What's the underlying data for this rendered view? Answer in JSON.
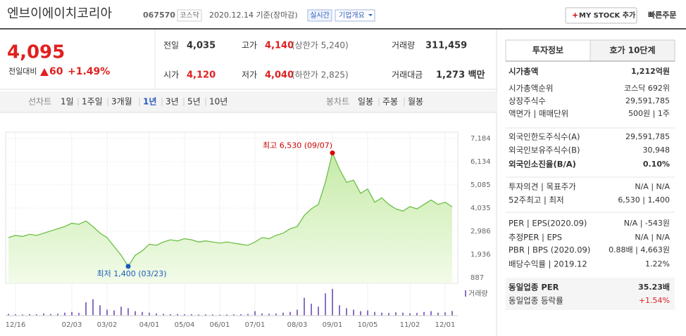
{
  "header": {
    "name": "엔브이에이치코리아",
    "code": "067570",
    "market": "코스닥",
    "date": "2020.12.14 기준(장마감)",
    "realtime": "실시간",
    "company": "기업개요",
    "mystock": "MY STOCK 추가",
    "order": "빠른주문"
  },
  "price": {
    "current": "4,095",
    "change_label": "전일대비",
    "change": "60",
    "rate": "+1.49%"
  },
  "summary": [
    [
      {
        "label": "전일",
        "value": "4,035"
      },
      {
        "label": "고가",
        "value": "4,140",
        "note": "(상한가 5,240)"
      },
      {
        "label": "거래량",
        "value": "311,459"
      }
    ],
    [
      {
        "label": "시가",
        "value": "4,120"
      },
      {
        "label": "저가",
        "value": "4,040",
        "note": "(하한가 2,825)"
      },
      {
        "label": "거래대금",
        "value": "1,273 백만"
      }
    ]
  ],
  "tabs": {
    "line": "선차트",
    "line_periods": [
      "1일",
      "1주일",
      "3개월",
      "1년",
      "3년",
      "5년",
      "10년"
    ],
    "candle": "봉차트",
    "candle_periods": [
      "일봉",
      "주봉",
      "월봉"
    ]
  },
  "chart_data": {
    "type": "line",
    "color": "#6cbf46",
    "categories": [
      null,
      "12/16",
      null,
      null,
      null,
      null,
      null,
      null,
      null,
      "02/03",
      null,
      null,
      null,
      null,
      "03/02",
      null,
      null,
      null,
      null,
      null,
      "04/01",
      null,
      null,
      null,
      null,
      "05/04",
      null,
      null,
      null,
      null,
      "06/01",
      null,
      null,
      null,
      null,
      "07/01",
      null,
      null,
      null,
      null,
      null,
      "08/03",
      null,
      null,
      null,
      null,
      "09/01",
      null,
      null,
      null,
      null,
      "10/05",
      null,
      null,
      null,
      null,
      null,
      "11/02",
      null,
      null,
      null,
      null,
      "12/01",
      null
    ],
    "values": [
      2700,
      2800,
      2750,
      2850,
      2800,
      2900,
      3000,
      3100,
      3200,
      3350,
      3300,
      3450,
      3200,
      2900,
      2700,
      2300,
      1900,
      1400,
      1900,
      2100,
      2400,
      2350,
      2500,
      2600,
      2550,
      2650,
      2600,
      2500,
      2550,
      2500,
      2450,
      2500,
      2450,
      2400,
      2350,
      2500,
      2700,
      2650,
      2800,
      2900,
      3100,
      3200,
      3700,
      4000,
      4200,
      5200,
      6530,
      5800,
      5200,
      5300,
      4700,
      4900,
      4300,
      4500,
      4200,
      4000,
      3900,
      4100,
      4000,
      4200,
      4400,
      4200,
      4300,
      4095
    ],
    "ylim": [
      887,
      7184
    ],
    "yticks": [
      {
        "value": 887,
        "label": "887"
      },
      {
        "value": 1936,
        "label": "1,936"
      },
      {
        "value": 2986,
        "label": "2,986"
      },
      {
        "value": 4035,
        "label": "4,035"
      },
      {
        "value": 5085,
        "label": "5,085"
      },
      {
        "value": 6134,
        "label": "6,134"
      },
      {
        "value": 7184,
        "label": "7,184"
      }
    ],
    "annotations": {
      "high": "최고 6,530 (09/07)",
      "low": "최저 1,400 (03/23)"
    },
    "volume": {
      "label": "거래량",
      "color": "#8a6fc4",
      "values": [
        120000,
        90000,
        80000,
        100000,
        90000,
        150000,
        110000,
        130000,
        200000,
        250000,
        180000,
        900000,
        1100000,
        700000,
        400000,
        350000,
        600000,
        500000,
        300000,
        250000,
        200000,
        150000,
        120000,
        100000,
        110000,
        90000,
        100000,
        80000,
        90000,
        85000,
        70000,
        80000,
        90000,
        100000,
        120000,
        300000,
        150000,
        130000,
        140000,
        200000,
        250000,
        400000,
        1200000,
        800000,
        600000,
        1500000,
        1800000,
        700000,
        500000,
        400000,
        300000,
        350000,
        250000,
        200000,
        180000,
        220000,
        200000,
        160000,
        180000,
        250000,
        300000,
        200000,
        220000,
        311459
      ]
    }
  },
  "info": {
    "tabs": [
      "투자정보",
      "호가 10단계"
    ],
    "groups": [
      [
        {
          "label": "시가총액",
          "value": "1,212억원",
          "bold": true
        },
        {
          "label": "시가총액순위",
          "value": "코스닥 692위"
        },
        {
          "label": "상장주식수",
          "value": "29,591,785"
        },
        {
          "label": "액면가 | 매매단위",
          "value": "500원 | 1주"
        }
      ],
      [
        {
          "label": "외국인한도주식수(A)",
          "value": "29,591,785"
        },
        {
          "label": "외국인보유주식수(B)",
          "value": "30,948"
        },
        {
          "label": "외국인소진율(B/A)",
          "value": "0.10%",
          "bold": true
        }
      ],
      [
        {
          "label": "투자의견 | 목표주가",
          "value": "N/A | N/A"
        },
        {
          "label": "52주최고 | 최저",
          "value": "6,530 | 1,400"
        }
      ],
      [
        {
          "label": "PER | EPS(2020.09)",
          "value": "N/A | -543원"
        },
        {
          "label": "추정PER | EPS",
          "value": "N/A | N/A"
        },
        {
          "label": "PBR | BPS (2020.09)",
          "value": "0.88배 | 4,663원"
        },
        {
          "label": "배당수익률 | 2019.12",
          "value": "1.22%"
        }
      ],
      [
        {
          "label": "동일업종 PER",
          "value": "35.23배",
          "bold": true
        },
        {
          "label": "동일업종 등락률",
          "value": "+1.54%",
          "up": true
        }
      ]
    ]
  }
}
